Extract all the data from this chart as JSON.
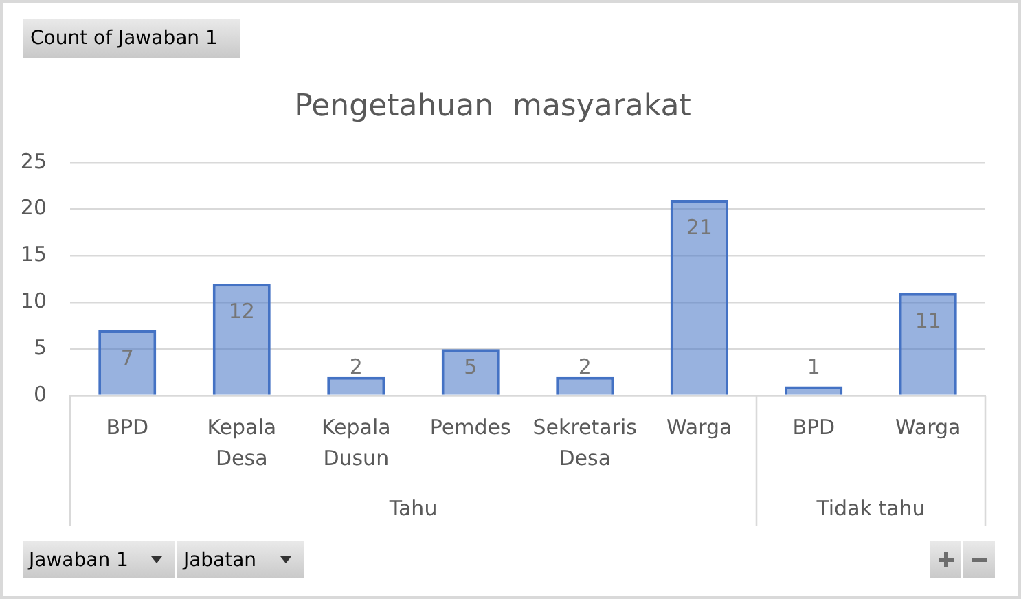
{
  "chart_data": {
    "type": "bar",
    "title": "Pengetahuan  masyarakat",
    "categories": [
      "BPD",
      "Kepala Desa",
      "Kepala Dusun",
      "Pemdes",
      "Sekretaris Desa",
      "Warga",
      "BPD",
      "Warga"
    ],
    "values": [
      7,
      12,
      2,
      5,
      2,
      21,
      1,
      11
    ],
    "color": "#4472c4",
    "ylim": [
      0,
      25
    ],
    "yticks": [
      0,
      5,
      10,
      15,
      20,
      25
    ],
    "grid": "y",
    "data_labels": true,
    "annotations": [
      "Count of Jawaban 1",
      "Jawaban 1",
      "Jabatan",
      {
        "text": "Tahu"
      },
      {
        "text": "Tidak tahu"
      }
    ]
  }
}
